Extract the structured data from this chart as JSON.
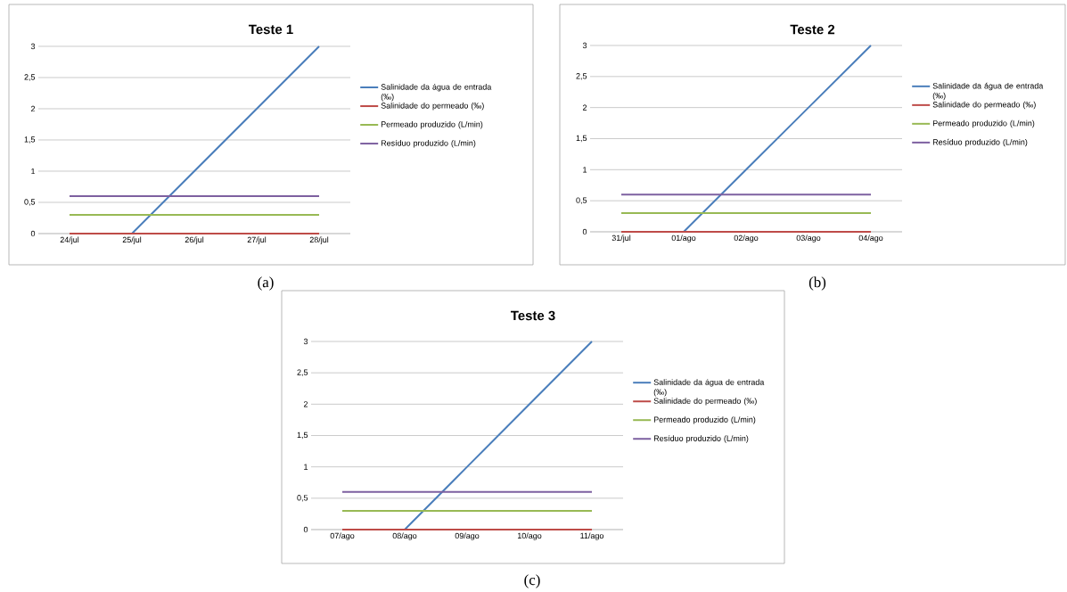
{
  "chart_data": [
    {
      "type": "line",
      "title": "Teste 1",
      "categories": [
        "24/jul",
        "25/jul",
        "26/jul",
        "27/jul",
        "28/jul"
      ],
      "series": [
        {
          "name": "Salinidade da água de entrada (‰)",
          "color": "#4a7ebb",
          "values": [
            null,
            0,
            1,
            2,
            3
          ]
        },
        {
          "name": "Salinidade do permeado (‰)",
          "color": "#be4b48",
          "values": [
            0,
            0,
            0,
            0,
            0
          ]
        },
        {
          "name": "Permeado produzido (L/min)",
          "color": "#98b954",
          "values": [
            0.3,
            0.3,
            0.3,
            0.3,
            0.3
          ]
        },
        {
          "name": "Resíduo produzido (L/min)",
          "color": "#7d60a0",
          "values": [
            0.6,
            0.6,
            0.6,
            0.6,
            0.6
          ]
        }
      ],
      "ylim": [
        0,
        3
      ],
      "yticks": [
        0,
        {
          "value": 0.5,
          "label": "0,5"
        },
        1,
        {
          "value": 1.5,
          "label": "1,5"
        },
        2,
        {
          "value": 2.5,
          "label": "2,5"
        },
        3
      ],
      "grid": "y",
      "legend": "right",
      "annotations": [
        "(a)"
      ]
    },
    {
      "type": "line",
      "title": "Teste 2",
      "categories": [
        "31/jul",
        "01/ago",
        "02/ago",
        "03/ago",
        "04/ago"
      ],
      "series": [
        {
          "name": "Salinidade da água de entrada (‰)",
          "color": "#4a7ebb",
          "values": [
            null,
            0,
            1,
            2,
            3
          ]
        },
        {
          "name": "Salinidade do permeado (‰)",
          "color": "#be4b48",
          "values": [
            0,
            0,
            0,
            0,
            0
          ]
        },
        {
          "name": "Permeado produzido (L/min)",
          "color": "#98b954",
          "values": [
            0.3,
            0.3,
            0.3,
            0.3,
            0.3
          ]
        },
        {
          "name": "Resíduo produzido (L/min)",
          "color": "#7d60a0",
          "values": [
            0.6,
            0.6,
            0.6,
            0.6,
            0.6
          ]
        }
      ],
      "ylim": [
        0,
        3
      ],
      "yticks": [
        0,
        {
          "value": 0.5,
          "label": "0,5"
        },
        1,
        {
          "value": 1.5,
          "label": "1,5"
        },
        2,
        {
          "value": 2.5,
          "label": "2,5"
        },
        3
      ],
      "grid": "y",
      "legend": "right",
      "annotations": [
        "(b)"
      ]
    },
    {
      "type": "line",
      "title": "Teste 3",
      "categories": [
        "07/ago",
        "08/ago",
        "09/ago",
        "10/ago",
        "11/ago"
      ],
      "series": [
        {
          "name": "Salinidade da água de entrada (‰)",
          "color": "#4a7ebb",
          "values": [
            null,
            0,
            1,
            2,
            3
          ]
        },
        {
          "name": "Salinidade do permeado (‰)",
          "color": "#be4b48",
          "values": [
            0,
            0,
            0,
            0,
            0
          ]
        },
        {
          "name": "Permeado produzido (L/min)",
          "color": "#98b954",
          "values": [
            0.3,
            0.3,
            0.3,
            0.3,
            0.3
          ]
        },
        {
          "name": "Resíduo produzido (L/min)",
          "color": "#7d60a0",
          "values": [
            0.6,
            0.6,
            0.6,
            0.6,
            0.6
          ]
        }
      ],
      "ylim": [
        0,
        3
      ],
      "yticks": [
        0,
        {
          "value": 0.5,
          "label": "0,5"
        },
        1,
        {
          "value": 1.5,
          "label": "1,5"
        },
        2,
        {
          "value": 2.5,
          "label": "2,5"
        },
        3
      ],
      "grid": "y",
      "legend": "right",
      "annotations": [
        "(c)"
      ]
    }
  ]
}
